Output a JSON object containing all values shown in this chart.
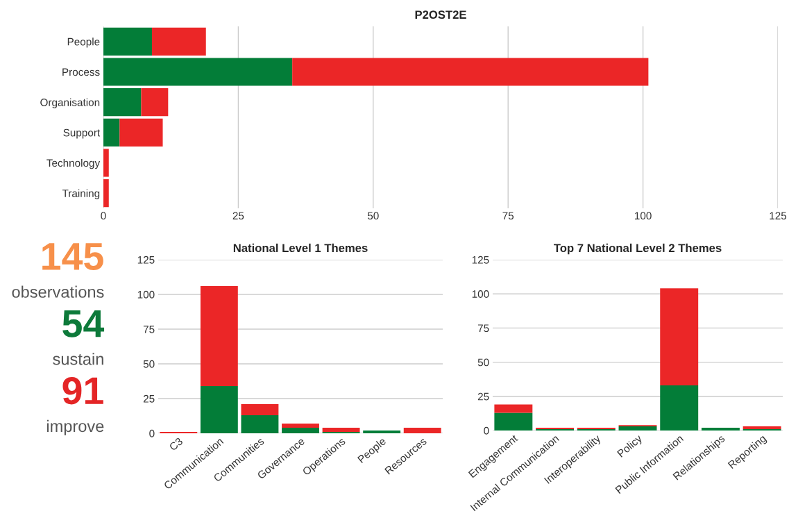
{
  "chart_data": [
    {
      "type": "bar",
      "title": "P2OST2E",
      "orientation": "horizontal",
      "stacked": true,
      "categories": [
        "People",
        "Process",
        "Organisation",
        "Support",
        "Technology",
        "Training"
      ],
      "series": [
        {
          "color": "#037d38",
          "values": [
            9,
            35,
            7,
            3,
            0,
            0
          ]
        },
        {
          "color": "#eb2627",
          "values": [
            10,
            66,
            5,
            8,
            1,
            1
          ]
        }
      ],
      "xlim": [
        0,
        125
      ],
      "xticks": [
        0,
        25,
        50,
        75,
        100,
        125
      ],
      "grid": "x"
    },
    {
      "type": "other",
      "annotations": [
        "145",
        "observations",
        "54",
        "sustain",
        "91",
        "improve"
      ],
      "colors": [
        "#f7904a",
        "#555555",
        "#0d7a3a",
        "#555555",
        "#e42526",
        "#555555"
      ]
    },
    {
      "type": "bar",
      "title": "National Level 1 Themes",
      "stacked": true,
      "categories": [
        "C3",
        "Communication",
        "Communities",
        "Governance",
        "Operations",
        "People",
        "Resources"
      ],
      "series": [
        {
          "color": "#037d38",
          "values": [
            0,
            34,
            13,
            4,
            1,
            2,
            0
          ]
        },
        {
          "color": "#eb2627",
          "values": [
            1,
            72,
            8,
            3,
            3,
            0,
            4
          ]
        }
      ],
      "ylim": [
        0,
        125
      ],
      "yticks": [
        0,
        25,
        50,
        75,
        100,
        125
      ],
      "grid": "y"
    },
    {
      "type": "bar",
      "title": "Top 7 National Level 2 Themes",
      "stacked": true,
      "categories": [
        "Engagement",
        "Internal Communication",
        "Interoperability",
        "Policy",
        "Public Information",
        "Relationships",
        "Reporting"
      ],
      "series": [
        {
          "color": "#037d38",
          "values": [
            13,
            1,
            1,
            3,
            33,
            2,
            1
          ]
        },
        {
          "color": "#eb2627",
          "values": [
            6,
            1,
            1,
            1,
            71,
            0,
            2
          ]
        }
      ],
      "ylim": [
        0,
        125
      ],
      "yticks": [
        0,
        25,
        50,
        75,
        100,
        125
      ],
      "grid": "y"
    }
  ]
}
